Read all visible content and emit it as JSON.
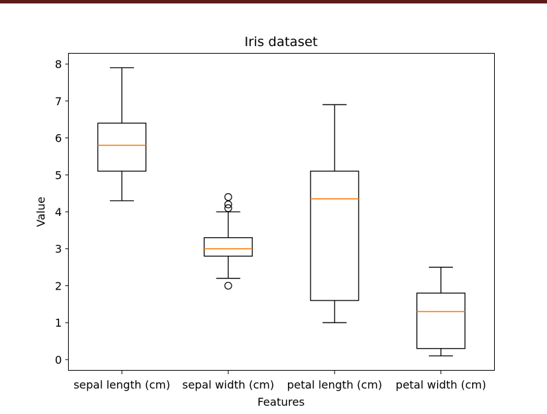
{
  "window": {
    "accent_bar_color": "#5c1a1a"
  },
  "chart_data": {
    "type": "boxplot",
    "title": "Iris dataset",
    "xlabel": "Features",
    "ylabel": "Value",
    "ylim": [
      -0.3,
      8.3
    ],
    "yticks": [
      0,
      1,
      2,
      3,
      4,
      5,
      6,
      7,
      8
    ],
    "categories": [
      "sepal length (cm)",
      "sepal width (cm)",
      "petal length (cm)",
      "petal width (cm)"
    ],
    "boxes": [
      {
        "whisker_low": 4.3,
        "q1": 5.1,
        "median": 5.8,
        "q3": 6.4,
        "whisker_high": 7.9,
        "outliers": []
      },
      {
        "whisker_low": 2.2,
        "q1": 2.8,
        "median": 3.0,
        "q3": 3.3,
        "whisker_high": 4.0,
        "outliers": [
          4.4,
          4.2,
          4.1,
          2.0
        ]
      },
      {
        "whisker_low": 1.0,
        "q1": 1.6,
        "median": 4.35,
        "q3": 5.1,
        "whisker_high": 6.9,
        "outliers": []
      },
      {
        "whisker_low": 0.1,
        "q1": 0.3,
        "median": 1.3,
        "q3": 1.8,
        "whisker_high": 2.5,
        "outliers": []
      }
    ],
    "colors": {
      "box": "#000000",
      "median": "#ff7f0e",
      "frame": "#000000"
    },
    "grid": false
  }
}
